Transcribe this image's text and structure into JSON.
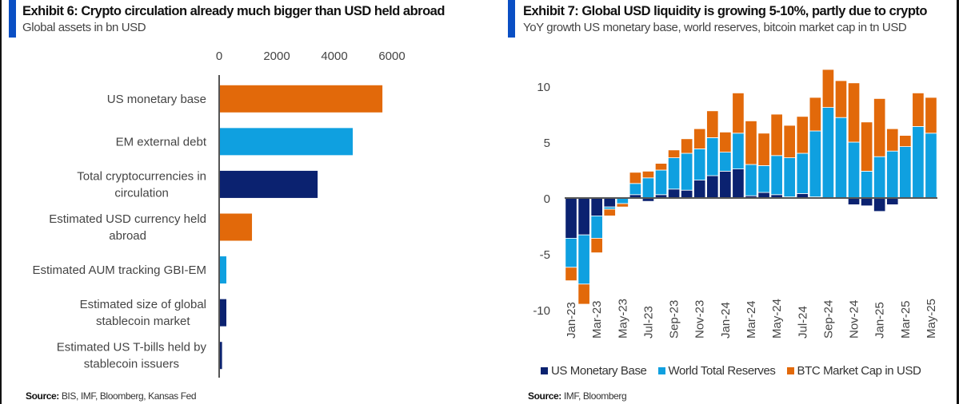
{
  "colors": {
    "accent": "#0a4fc4",
    "orange": "#e2690a",
    "light_blue": "#0fa0e0",
    "navy": "#0b2270",
    "axis": "#555555"
  },
  "left": {
    "title": "Exhibit 6: Crypto circulation already much bigger than USD held abroad",
    "subtitle": "Global assets in bn USD",
    "source_label": "Source:",
    "source_text": " BIS, IMF, Bloomberg, Kansas Fed"
  },
  "right": {
    "title": "Exhibit 7: Global USD liquidity is growing 5-10%, partly due to crypto",
    "subtitle": "YoY growth US monetary base, world reserves, bitcoin market cap in tn USD",
    "source_label": "Source:",
    "source_text": " IMF, Bloomberg"
  },
  "chart_data": [
    {
      "type": "bar",
      "orientation": "horizontal",
      "title": "Exhibit 6: Crypto circulation already much bigger than USD held abroad",
      "subtitle": "Global assets in bn USD",
      "categories": [
        [
          "US monetary base"
        ],
        [
          "EM external debt"
        ],
        [
          "Total cryptocurrencies in",
          "circulation"
        ],
        [
          "Estimated USD currency held",
          "abroad"
        ],
        [
          "Estimated AUM tracking GBI-EM"
        ],
        [
          "Estimated size of global",
          "stablecoin market"
        ],
        [
          "Estimated US T-bills held by",
          "stablecoin issuers"
        ]
      ],
      "values": [
        5670,
        4640,
        3420,
        1140,
        250,
        250,
        100
      ],
      "bar_colors": [
        "orange",
        "light_blue",
        "navy",
        "orange",
        "light_blue",
        "navy",
        "navy"
      ],
      "xlim": [
        0,
        6000
      ],
      "xticks": [
        0,
        2000,
        4000,
        6000
      ],
      "xtick_labels": [
        "0",
        "2000",
        "4000",
        "6000"
      ],
      "axis_position": "top",
      "grid": false,
      "xlabel": "",
      "ylabel": ""
    },
    {
      "type": "bar",
      "stacked": true,
      "title": "Exhibit 7: Global USD liquidity is growing 5-10%, partly due to crypto",
      "subtitle": "YoY growth US monetary base, world reserves, bitcoin market cap in tn USD",
      "x": [
        "Jan-23",
        "Feb-23",
        "Mar-23",
        "Apr-23",
        "May-23",
        "Jun-23",
        "Jul-23",
        "Aug-23",
        "Sep-23",
        "Oct-23",
        "Nov-23",
        "Dec-23",
        "Jan-24",
        "Feb-24",
        "Mar-24",
        "Apr-24",
        "May-24",
        "Jun-24",
        "Jul-24",
        "Aug-24",
        "Sep-24",
        "Oct-24",
        "Nov-24",
        "Dec-24",
        "Jan-25",
        "Feb-25",
        "Mar-25",
        "Apr-25",
        "May-25"
      ],
      "xtick_labels": [
        "Jan-23",
        "Mar-23",
        "May-23",
        "Jul-23",
        "Sep-23",
        "Nov-23",
        "Jan-24",
        "Mar-24",
        "May-24",
        "Jul-24",
        "Sep-24",
        "Nov-24",
        "Jan-25",
        "Mar-25",
        "May-25"
      ],
      "series": [
        {
          "name": "US Monetary Base",
          "color": "navy",
          "values": [
            -3.6,
            -3.3,
            -1.6,
            -0.8,
            0.0,
            0.3,
            -0.3,
            0.3,
            0.8,
            0.7,
            1.6,
            2.0,
            2.4,
            2.6,
            0.2,
            0.5,
            0.3,
            0.1,
            0.4,
            0.1,
            0.0,
            0.0,
            -0.6,
            -0.7,
            -1.2,
            -0.6,
            0.0,
            0.0,
            0.0
          ]
        },
        {
          "name": "World Total Reserves",
          "color": "light_blue",
          "values": [
            -2.6,
            -4.4,
            -2.0,
            -0.2,
            -0.5,
            1.0,
            1.8,
            2.2,
            2.8,
            3.3,
            2.8,
            3.4,
            1.7,
            3.2,
            2.8,
            2.4,
            3.5,
            3.5,
            3.6,
            5.9,
            8.1,
            7.2,
            5.0,
            2.4,
            3.7,
            4.2,
            4.6,
            6.4,
            5.8
          ]
        },
        {
          "name": "BTC Market Cap in USD",
          "color": "orange",
          "values": [
            -1.2,
            -1.8,
            -1.3,
            -0.6,
            -0.3,
            1.0,
            0.6,
            0.6,
            0.7,
            1.3,
            1.8,
            2.4,
            1.8,
            3.6,
            3.9,
            2.9,
            3.7,
            2.9,
            3.3,
            3.0,
            3.4,
            3.3,
            5.3,
            4.4,
            5.2,
            2.0,
            1.0,
            3.0,
            3.2
          ]
        }
      ],
      "ylim": [
        -10,
        12
      ],
      "yticks": [
        -10,
        -5,
        0,
        5,
        10
      ],
      "ytick_labels": [
        "-10",
        "-5",
        "0",
        "5",
        "10"
      ],
      "legend": "bottom",
      "grid": false,
      "xlabel": "",
      "ylabel": ""
    }
  ]
}
